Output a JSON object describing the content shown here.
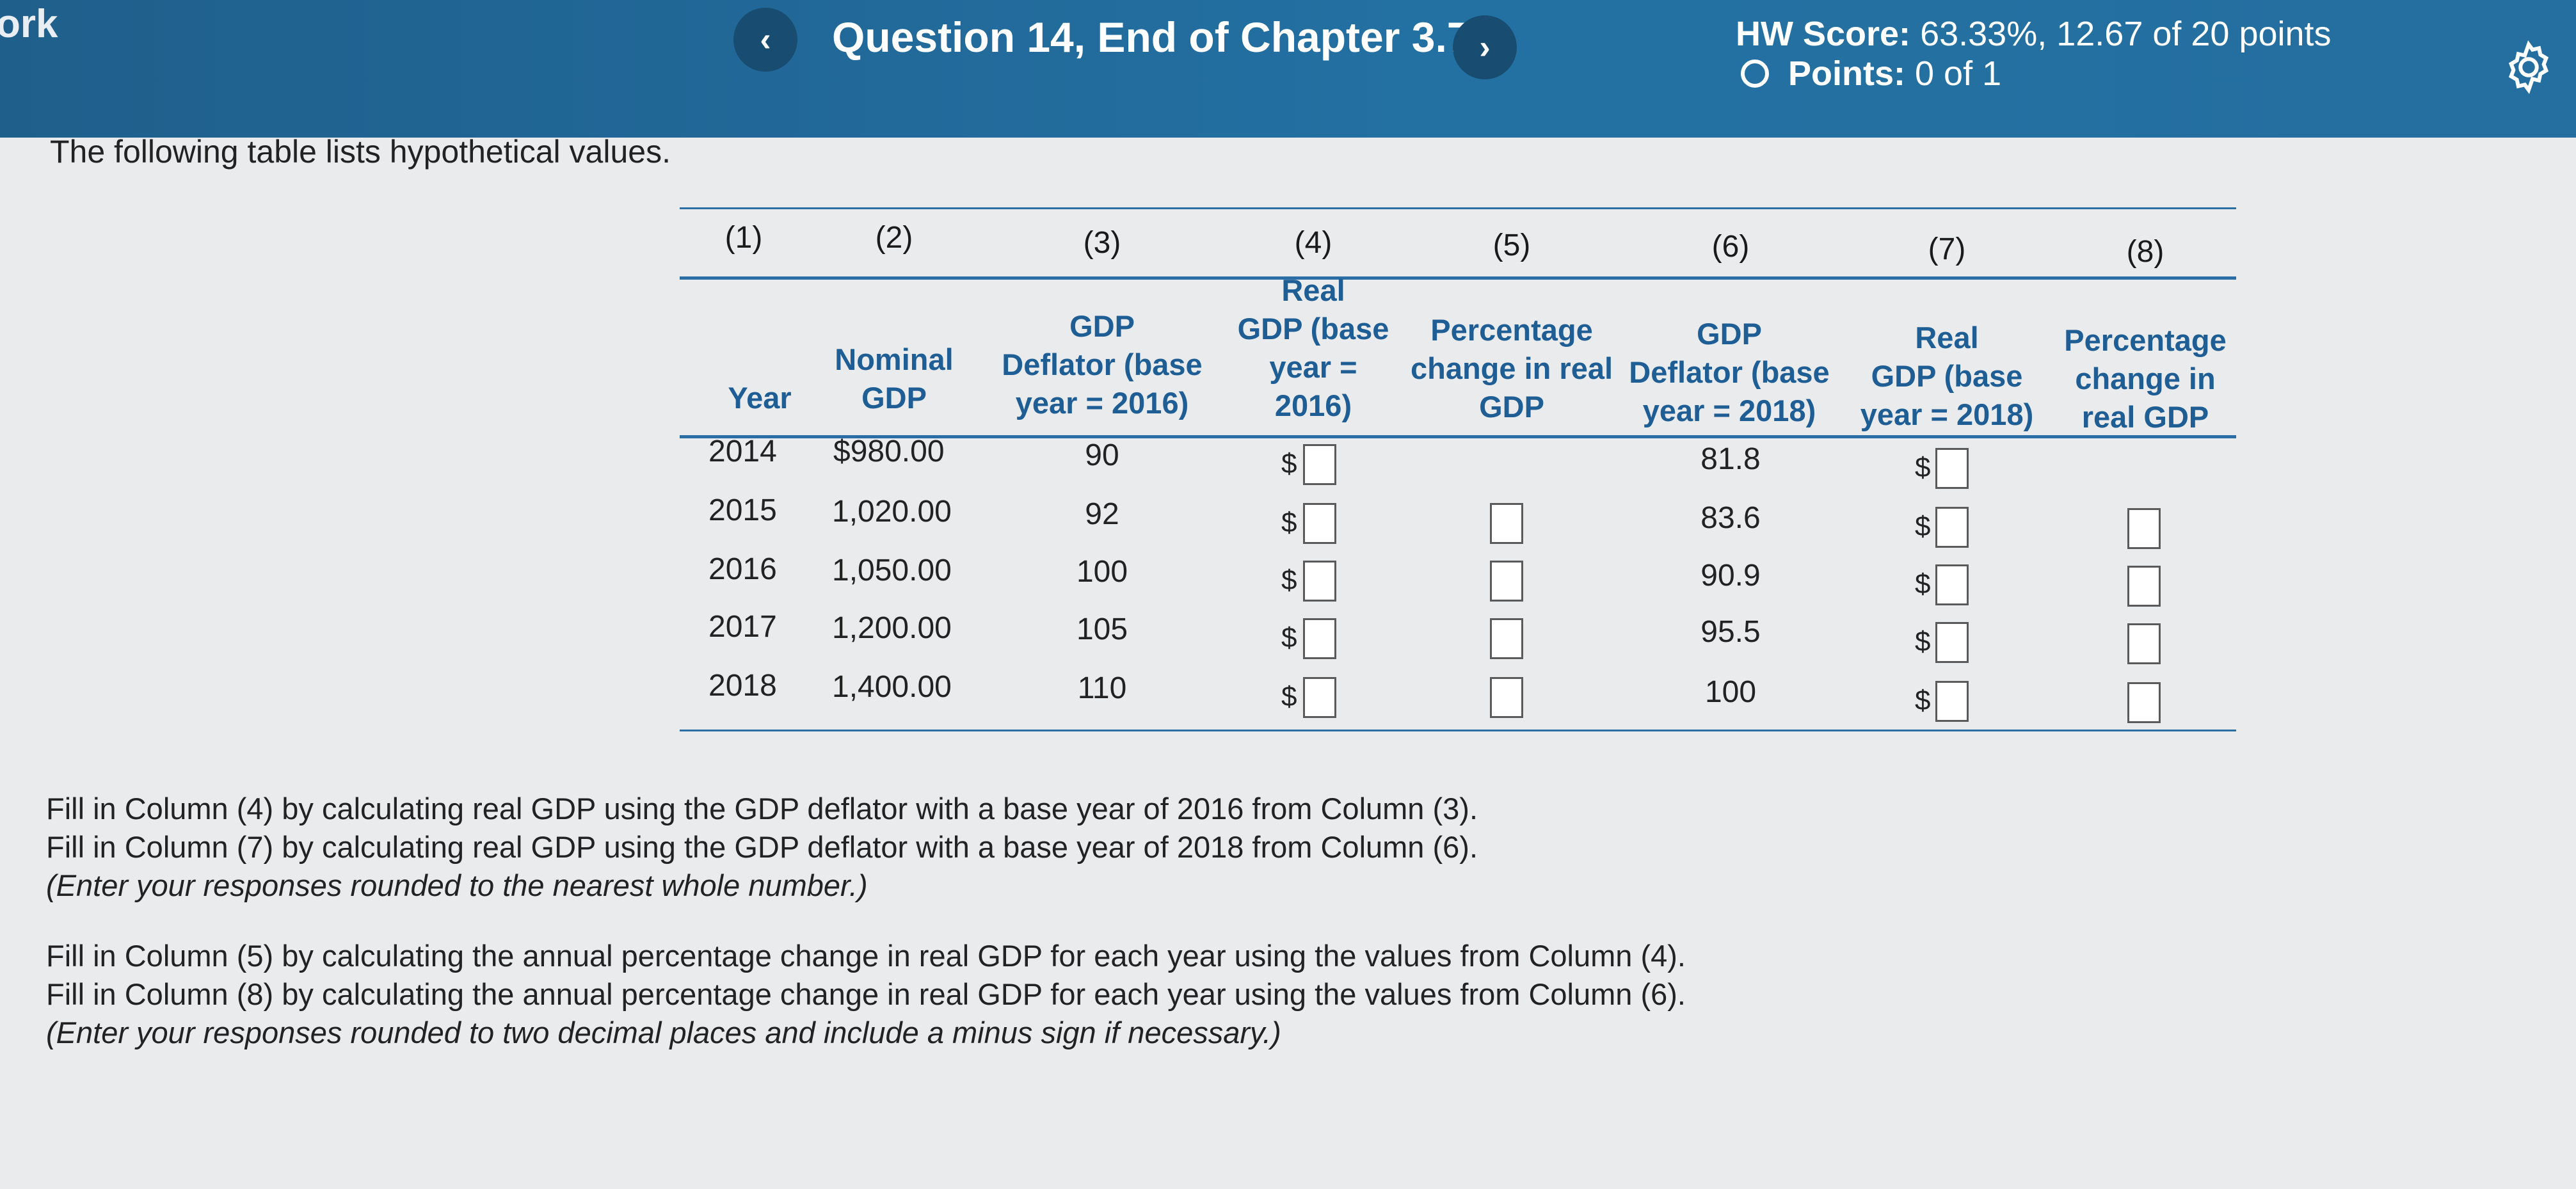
{
  "header": {
    "left_label": "ork",
    "prev_icon": "chevron-left",
    "next_icon": "chevron-right",
    "question_title": "Question 14, End of Chapter 3.7",
    "hw_score_label": "HW Score:",
    "hw_score_value": "63.33%, 12.67 of 20 points",
    "points_label": "Points:",
    "points_value": "0 of 1",
    "settings_icon": "gear-icon"
  },
  "intro": "The following table lists hypothetical values.",
  "table": {
    "col_numbers": [
      "(1)",
      "(2)",
      "(3)",
      "(4)",
      "(5)",
      "(6)",
      "(7)",
      "(8)"
    ],
    "headers": {
      "c1": [
        "Year"
      ],
      "c2": [
        "Nominal",
        "GDP"
      ],
      "c3": [
        "GDP",
        "Deflator (base",
        "year = 2016)"
      ],
      "c4": [
        "Real",
        "GDP (base",
        "year =",
        "2016)"
      ],
      "c5": [
        "Percentage",
        "change in real",
        "GDP"
      ],
      "c6": [
        "GDP",
        "Deflator (base",
        "year = 2018)"
      ],
      "c7": [
        "Real",
        "GDP (base",
        "year = 2018)"
      ],
      "c8": [
        "Percentage",
        "change in",
        "real GDP"
      ]
    },
    "currency_symbol": "$",
    "rows": [
      {
        "year": "2014",
        "nominal": "$980.00",
        "deflator2016": "90",
        "deflator2018": "81.8"
      },
      {
        "year": "2015",
        "nominal": "1,020.00",
        "deflator2016": "92",
        "deflator2018": "83.6"
      },
      {
        "year": "2016",
        "nominal": "1,050.00",
        "deflator2016": "100",
        "deflator2018": "90.9"
      },
      {
        "year": "2017",
        "nominal": "1,200.00",
        "deflator2016": "105",
        "deflator2018": "95.5"
      },
      {
        "year": "2018",
        "nominal": "1,400.00",
        "deflator2016": "110",
        "deflator2018": "100"
      }
    ]
  },
  "instructions": {
    "line1": "Fill in Column (4) by calculating real GDP using the GDP deflator with a base year of 2016 from Column (3).",
    "line2": "Fill in Column (7) by calculating real GDP using the GDP deflator with a base year of 2018 from Column (6).",
    "line3": "(Enter your responses rounded to the nearest whole number.)",
    "line4": "Fill in Column (5) by calculating the annual percentage change in real GDP for each year using the values from Column (4).",
    "line5": "Fill in Column (8) by calculating the annual percentage change in real GDP for each year using the values from Column (6).",
    "line6": "(Enter your responses rounded to two decimal places and include a minus sign if necessary.)"
  }
}
